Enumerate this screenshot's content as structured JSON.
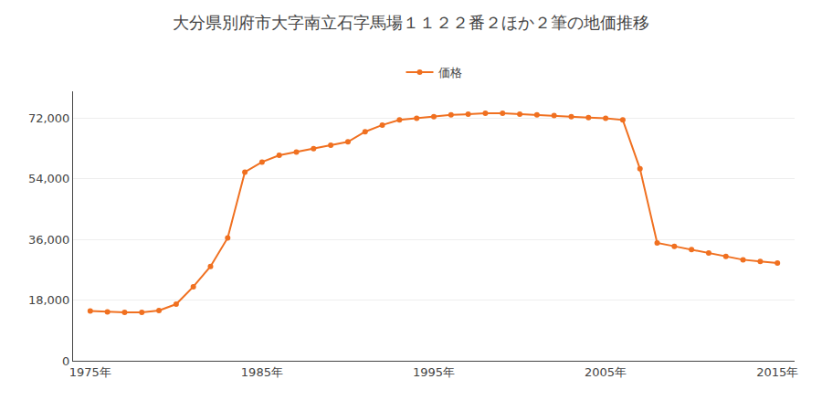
{
  "chart_data": {
    "type": "line",
    "title": "大分県別府市大字南立石字馬場１１２２番２ほか２筆の地価推移",
    "x": [
      1975,
      1976,
      1977,
      1978,
      1979,
      1980,
      1981,
      1982,
      1983,
      1984,
      1985,
      1986,
      1987,
      1988,
      1989,
      1990,
      1991,
      1992,
      1993,
      1994,
      1995,
      1996,
      1997,
      1998,
      1999,
      2000,
      2001,
      2002,
      2003,
      2004,
      2005,
      2006,
      2007,
      2008,
      2009,
      2010,
      2011,
      2012,
      2013,
      2014,
      2015
    ],
    "series": [
      {
        "name": "価格",
        "color": "#f07020",
        "marker": "circle",
        "line_style": "solid",
        "values": [
          14800,
          14500,
          14400,
          14400,
          14900,
          16800,
          22000,
          28000,
          36500,
          56000,
          59000,
          61000,
          62000,
          63000,
          64000,
          65000,
          68000,
          70000,
          71500,
          72000,
          72500,
          73000,
          73200,
          73500,
          73500,
          73200,
          73000,
          72800,
          72500,
          72200,
          72000,
          71500,
          57000,
          35000,
          34000,
          33000,
          32000,
          31000,
          30000,
          29500,
          29000
        ]
      }
    ],
    "ylim": [
      0,
      80000
    ],
    "yticks": [
      0,
      {
        "value": 18000,
        "label": "18,000"
      },
      {
        "value": 36000,
        "label": "36,000"
      },
      {
        "value": 54000,
        "label": "54,000"
      },
      {
        "value": 72000,
        "label": "72,000"
      }
    ],
    "xlim": [
      1974,
      2016
    ],
    "xticks": [
      {
        "value": 1975,
        "label": "1975年"
      },
      {
        "value": 1985,
        "label": "1985年"
      },
      {
        "value": 1995,
        "label": "1995年"
      },
      {
        "value": 2005,
        "label": "2005年"
      },
      {
        "value": 2015,
        "label": "2015年"
      }
    ],
    "grid": "y",
    "legend": "top"
  }
}
